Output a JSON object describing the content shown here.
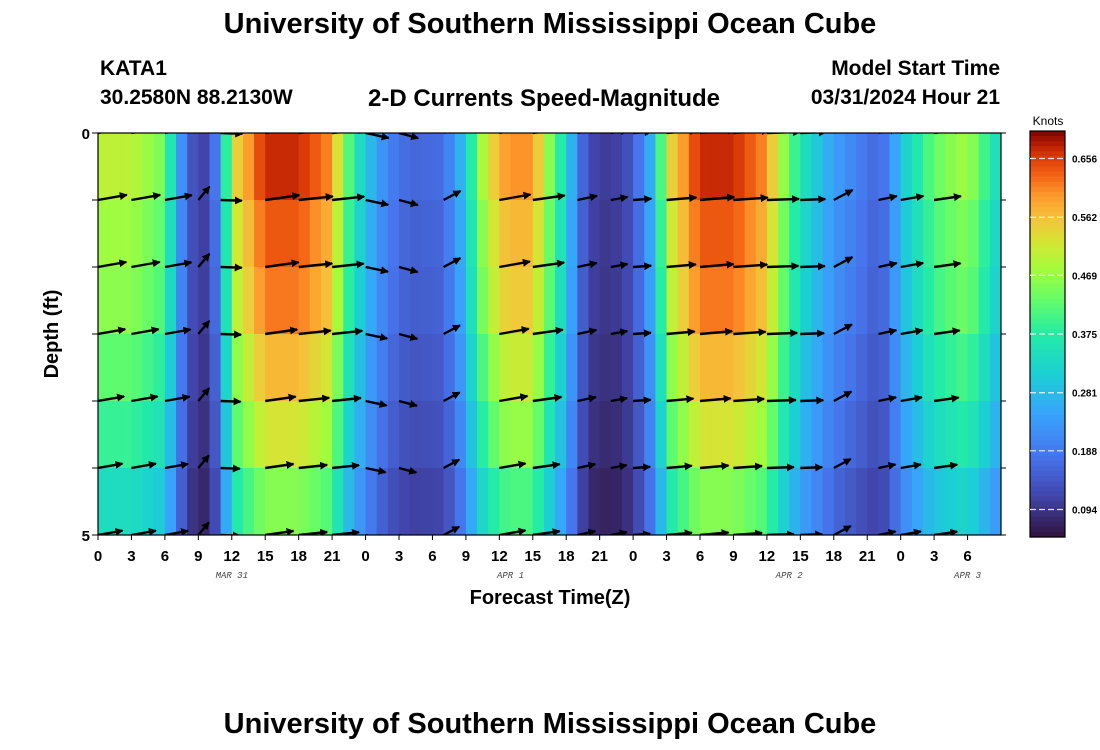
{
  "header": {
    "title": "University of Southern Mississippi Ocean Cube",
    "station_id": "KATA1",
    "station_coords": "30.2580N  88.2130W",
    "chart_title": "2-D Currents Speed-Magnitude",
    "model_label": "Model Start Time",
    "model_time": "03/31/2024 Hour 21"
  },
  "footer": {
    "title": "University of Southern Mississippi Ocean Cube"
  },
  "chart_data": {
    "type": "heatmap",
    "title": "2-D Currents Speed-Magnitude",
    "xlabel": "Forecast Time(Z)",
    "ylabel": "Depth (ft)",
    "colorbar_label": "Knots",
    "colorbar_ticks": [
      "0.656",
      "0.562",
      "0.469",
      "0.375",
      "0.281",
      "0.188",
      "0.094"
    ],
    "colorbar_values": [
      0.656,
      0.562,
      0.469,
      0.375,
      0.281,
      0.188,
      0.094
    ],
    "speed_range": [
      0.05,
      0.7
    ],
    "x_range_hours": [
      0,
      81
    ],
    "y_ticks": [
      "0",
      "5"
    ],
    "ylim": [
      0,
      5
    ],
    "x_tick_labels": [
      "0",
      "3",
      "6",
      "9",
      "12",
      "15",
      "18",
      "21",
      "0",
      "3",
      "6",
      "9",
      "12",
      "15",
      "18",
      "21",
      "0",
      "3",
      "6",
      "9",
      "12",
      "15",
      "18",
      "21",
      "0",
      "3",
      "6"
    ],
    "date_labels": [
      {
        "text": "MAR 31",
        "hour": 12
      },
      {
        "text": "APR 1",
        "hour": 37
      },
      {
        "text": "APR 2",
        "hour": 62
      },
      {
        "text": "APR 3",
        "hour": 78
      }
    ],
    "speed_profile_hours": [
      0,
      3,
      6,
      7,
      8,
      9,
      10,
      11,
      12,
      15,
      18,
      21,
      22,
      24,
      26,
      28,
      31,
      33,
      34,
      36,
      37,
      39,
      40,
      42,
      43,
      44,
      46,
      48,
      50,
      51,
      54,
      57,
      60,
      61,
      63,
      66,
      67,
      68,
      70,
      71,
      72,
      75,
      78,
      81
    ],
    "speed_profile_values": [
      0.5,
      0.5,
      0.44,
      0.28,
      0.16,
      0.11,
      0.12,
      0.24,
      0.52,
      0.67,
      0.67,
      0.6,
      0.45,
      0.3,
      0.2,
      0.16,
      0.17,
      0.3,
      0.45,
      0.58,
      0.6,
      0.6,
      0.5,
      0.33,
      0.2,
      0.12,
      0.1,
      0.14,
      0.3,
      0.52,
      0.67,
      0.67,
      0.6,
      0.5,
      0.36,
      0.24,
      0.22,
      0.2,
      0.16,
      0.2,
      0.3,
      0.43,
      0.48,
      0.32
    ],
    "depth_factor": [
      1.0,
      0.95,
      0.92,
      0.85,
      0.78,
      0.68
    ],
    "vector_hours": [
      0,
      3,
      6,
      9,
      11,
      15,
      18,
      21,
      24,
      27,
      31,
      36,
      39,
      43,
      46,
      48,
      51,
      54,
      57,
      60,
      63,
      66,
      70,
      72,
      75
    ],
    "vector_dir_deg": [
      10,
      10,
      10,
      50,
      -2,
      8,
      6,
      6,
      -12,
      -15,
      28,
      10,
      8,
      12,
      10,
      4,
      5,
      5,
      4,
      2,
      2,
      28,
      12,
      10,
      8
    ]
  }
}
